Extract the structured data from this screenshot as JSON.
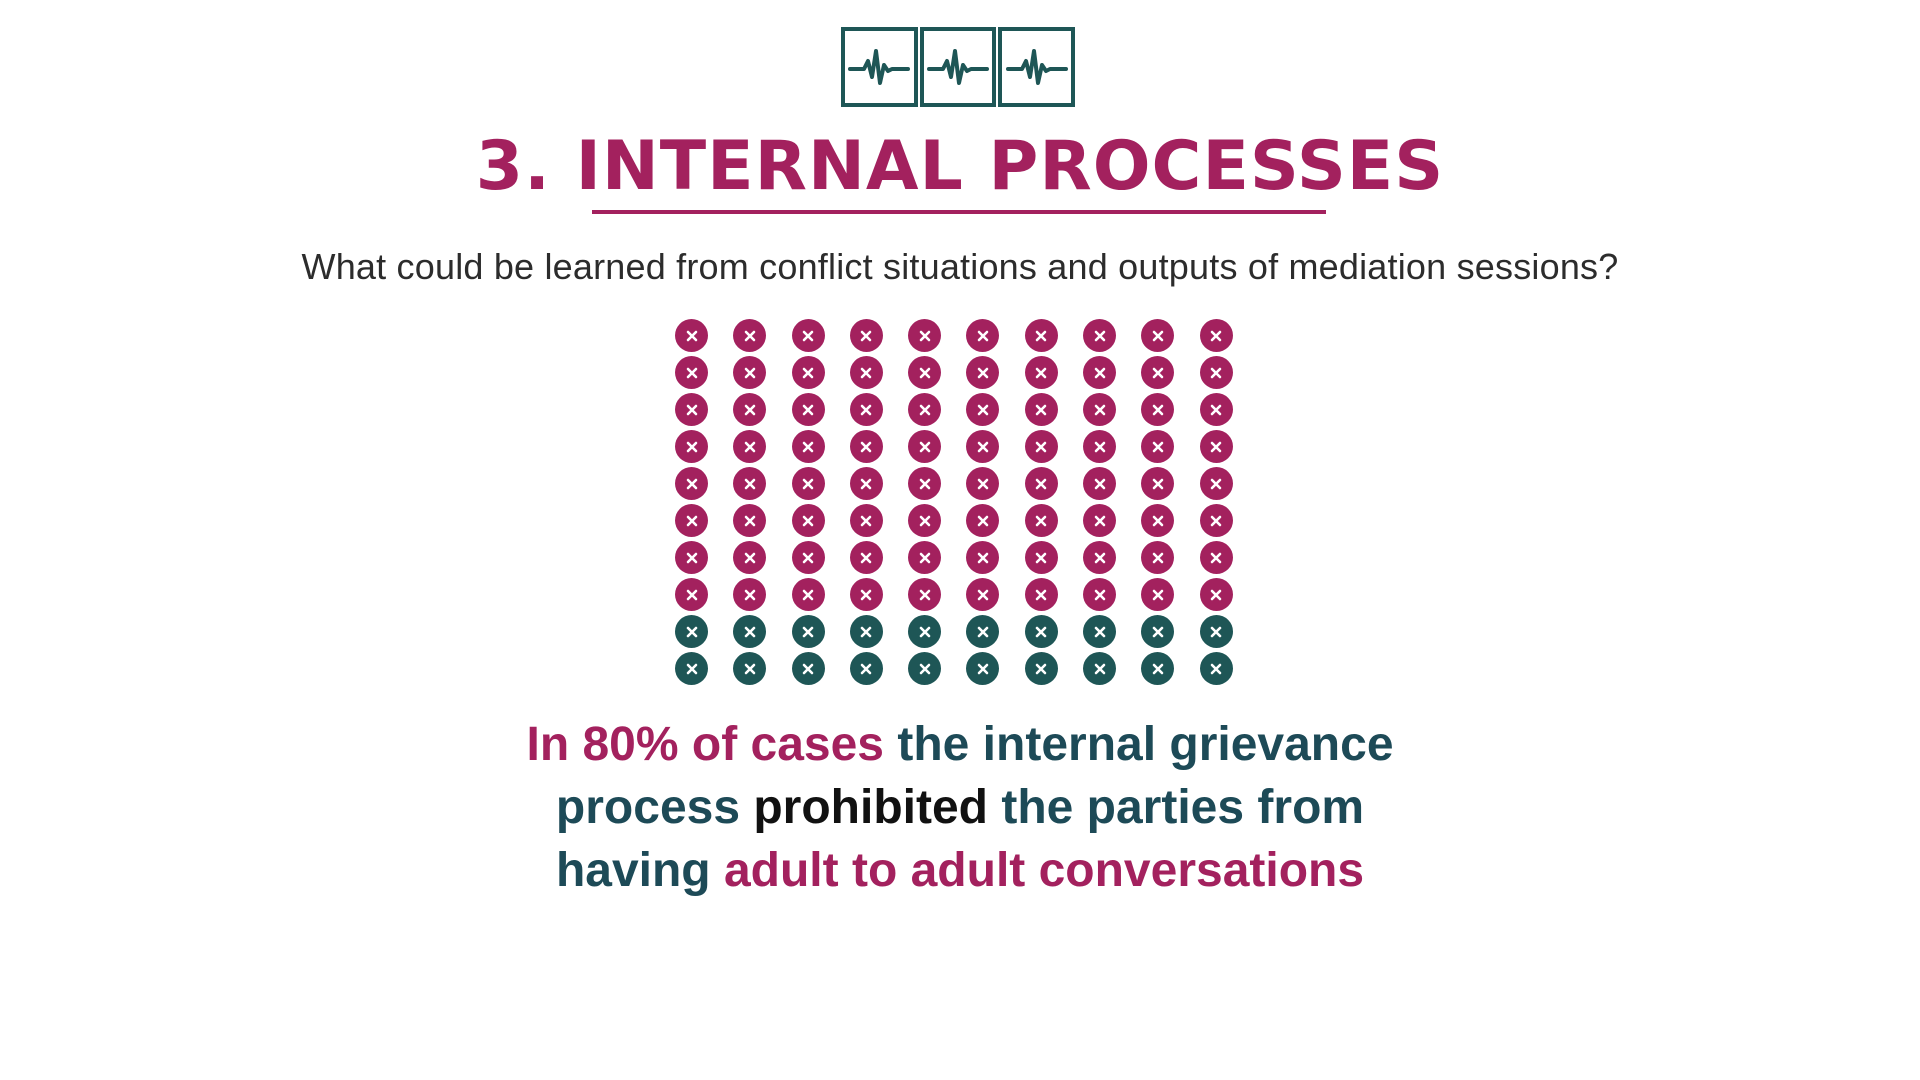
{
  "logo": {
    "icon": "heartbeat-icon",
    "count": 3,
    "color": "#1e5656"
  },
  "header": {
    "title": "3. INTERNAL PROCESSES",
    "title_color": "#a3215e",
    "underline_color": "#a3215e"
  },
  "subtitle": "What could be learned from conflict situations and outputs of mediation sessions?",
  "icon_grid": {
    "icon": "x-circle-icon",
    "rows": 10,
    "columns": 10,
    "highlighted_count": 80,
    "total_count": 100,
    "highlighted_color": "#a3215e",
    "other_color": "#1e5656"
  },
  "caption": {
    "lines": [
      [
        {
          "text": "In 80% of cases ",
          "color": "#a3215e"
        },
        {
          "text": "the internal grievance",
          "color": "#1d4a57"
        }
      ],
      [
        {
          "text": "process ",
          "color": "#1d4a57"
        },
        {
          "text": "prohibited ",
          "color": "#111111"
        },
        {
          "text": "the parties from",
          "color": "#1d4a57"
        }
      ],
      [
        {
          "text": "having ",
          "color": "#1d4a57"
        },
        {
          "text": "adult to adult conversations",
          "color": "#a3215e"
        }
      ]
    ]
  }
}
